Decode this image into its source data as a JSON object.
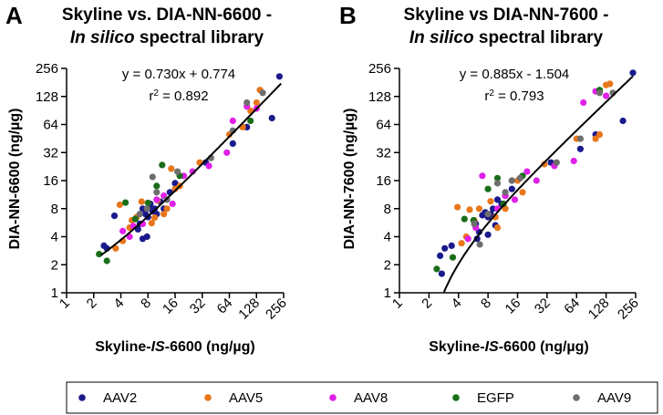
{
  "legend": [
    {
      "label": "AAV2",
      "color": "#1a1a8c"
    },
    {
      "label": "AAV5",
      "color": "#e8761a"
    },
    {
      "label": "AAV8",
      "color": "#e020e8"
    },
    {
      "label": "EGFP",
      "color": "#1a6e1a"
    },
    {
      "label": "AAV9",
      "color": "#6e6e6e"
    }
  ],
  "chart_data": [
    {
      "type": "scatter",
      "panel": "A",
      "title_line1": "Skyline vs. DIA-NN-6600 -",
      "title_line2_italic": "In silico",
      "title_line2_rest": " spectral library",
      "xlabel_pre": "Skyline-",
      "xlabel_it": "IS",
      "xlabel_post": "-6600 (ng/µg)",
      "ylabel": "DIA-NN-6600 (ng/µg)",
      "scale": "log2",
      "xlim": [
        1,
        256
      ],
      "ylim": [
        1,
        256
      ],
      "xticks": [
        1,
        2,
        4,
        8,
        16,
        32,
        64,
        128,
        256
      ],
      "yticks": [
        1,
        2,
        4,
        8,
        16,
        32,
        64,
        128,
        256
      ],
      "tick_labels": [
        "1",
        "2",
        "4",
        "8",
        "16",
        "32",
        "64",
        "128",
        "256"
      ],
      "fit": {
        "slope": 0.73,
        "intercept": 0.774,
        "x_from": 2.4,
        "x_to": 240
      },
      "equation_line1": "y = 0.730x + 0.774",
      "r2_prefix": "r",
      "r2_sup": "2",
      "r2_value": " = 0.892",
      "series": [
        {
          "name": "AAV2",
          "points": [
            [
              2.6,
              3.2
            ],
            [
              2.8,
              3.0
            ],
            [
              3.4,
              6.7
            ],
            [
              6.5,
              5.5
            ],
            [
              7,
              8
            ],
            [
              7.5,
              7
            ],
            [
              8,
              6.5
            ],
            [
              8.3,
              8.5
            ],
            [
              8.5,
              9
            ],
            [
              9,
              7.5
            ],
            [
              9.5,
              8
            ],
            [
              7.8,
              4
            ],
            [
              10,
              7
            ],
            [
              11,
              9.5
            ],
            [
              12,
              8
            ],
            [
              14,
              12
            ],
            [
              16,
              15
            ],
            [
              6.2,
              4.8
            ],
            [
              7,
              3.8
            ],
            [
              35,
              25
            ],
            [
              70,
              40
            ],
            [
              100,
              60
            ],
            [
              190,
              75
            ],
            [
              230,
              210
            ]
          ]
        },
        {
          "name": "AAV5",
          "points": [
            [
              3.5,
              3
            ],
            [
              3.9,
              8.8
            ],
            [
              4.2,
              3.6
            ],
            [
              5,
              5
            ],
            [
              5.3,
              6
            ],
            [
              6,
              6.5
            ],
            [
              6.8,
              9.5
            ],
            [
              8.8,
              5.6
            ],
            [
              9.5,
              6.4
            ],
            [
              10.2,
              9.8
            ],
            [
              12,
              7
            ],
            [
              13,
              8
            ],
            [
              14.5,
              21.5
            ],
            [
              16,
              13
            ],
            [
              18,
              14
            ],
            [
              30,
              25
            ],
            [
              64,
              50
            ],
            [
              90,
              60
            ],
            [
              110,
              90
            ],
            [
              128,
              110
            ],
            [
              140,
              150
            ]
          ]
        },
        {
          "name": "AAV8",
          "points": [
            [
              4.2,
              4.6
            ],
            [
              5,
              4
            ],
            [
              5.5,
              5.2
            ],
            [
              7,
              5.5
            ],
            [
              10,
              10
            ],
            [
              12,
              11
            ],
            [
              15,
              9
            ],
            [
              20,
              18
            ],
            [
              25,
              20
            ],
            [
              38,
              23
            ],
            [
              60,
              32
            ],
            [
              70,
              70
            ],
            [
              100,
              100
            ],
            [
              128,
              95
            ]
          ]
        },
        {
          "name": "EGFP",
          "points": [
            [
              2.3,
              2.6
            ],
            [
              2.8,
              2.2
            ],
            [
              4.5,
              9.3
            ],
            [
              5.8,
              6.2
            ],
            [
              8,
              9.2
            ],
            [
              10,
              14
            ],
            [
              11.5,
              23.5
            ],
            [
              18,
              18
            ],
            [
              110,
              70
            ]
          ]
        },
        {
          "name": "AAV9",
          "points": [
            [
              6.5,
              7
            ],
            [
              7.8,
              8
            ],
            [
              9,
              17.5
            ],
            [
              10,
              12
            ],
            [
              13,
              10
            ],
            [
              17,
              20
            ],
            [
              40,
              28
            ],
            [
              70,
              55
            ],
            [
              100,
              110
            ],
            [
              150,
              140
            ]
          ]
        }
      ]
    },
    {
      "type": "scatter",
      "panel": "B",
      "title_line1": "Skyline vs DIA-NN-7600 -",
      "title_line2_italic": "In silico",
      "title_line2_rest": " spectral library",
      "xlabel_pre": "Skyline-",
      "xlabel_it": "IS",
      "xlabel_post": "-6600 (ng/µg)",
      "ylabel": "DIA-NN-7600 (ng/µg)",
      "scale": "log2",
      "xlim": [
        1,
        256
      ],
      "ylim": [
        1,
        256
      ],
      "xticks": [
        1,
        2,
        4,
        8,
        16,
        32,
        64,
        128,
        256
      ],
      "yticks": [
        1,
        2,
        4,
        8,
        16,
        32,
        64,
        128,
        256
      ],
      "tick_labels": [
        "1",
        "2",
        "4",
        "8",
        "16",
        "32",
        "64",
        "128",
        "256"
      ],
      "fit": {
        "slope": 0.885,
        "intercept": -1.504,
        "x_from": 2.85,
        "x_to": 240
      },
      "equation_line1": "y = 0.885x - 1.504",
      "r2_prefix": "r",
      "r2_sup": "2",
      "r2_value": " = 0.793",
      "series": [
        {
          "name": "AAV2",
          "points": [
            [
              2.6,
              2.5
            ],
            [
              2.7,
              1.6
            ],
            [
              2.9,
              3
            ],
            [
              3.4,
              3.2
            ],
            [
              6,
              5.5
            ],
            [
              6.5,
              4.5
            ],
            [
              7,
              6.8
            ],
            [
              7.5,
              7.3
            ],
            [
              8,
              6.5
            ],
            [
              8.5,
              7
            ],
            [
              9,
              8
            ],
            [
              9.5,
              5.3
            ],
            [
              10,
              10
            ],
            [
              11,
              9
            ],
            [
              12,
              11
            ],
            [
              14,
              13
            ],
            [
              6.2,
              3.8
            ],
            [
              8,
              4.2
            ],
            [
              35,
              25
            ],
            [
              70,
              35
            ],
            [
              100,
              50
            ],
            [
              190,
              70
            ],
            [
              240,
              230
            ]
          ]
        },
        {
          "name": "AAV5",
          "points": [
            [
              3.9,
              8.3
            ],
            [
              4.3,
              3.4
            ],
            [
              4.8,
              4
            ],
            [
              5.2,
              7.8
            ],
            [
              5.8,
              6
            ],
            [
              6.5,
              8
            ],
            [
              8.5,
              9.6
            ],
            [
              9.5,
              6.5
            ],
            [
              10,
              5
            ],
            [
              12,
              8
            ],
            [
              14,
              16
            ],
            [
              16,
              16
            ],
            [
              18,
              12
            ],
            [
              30,
              24
            ],
            [
              64,
              45
            ],
            [
              100,
              45
            ],
            [
              110,
              50
            ],
            [
              128,
              170
            ],
            [
              140,
              175
            ]
          ]
        },
        {
          "name": "AAV8",
          "points": [
            [
              5,
              3.8
            ],
            [
              6,
              5
            ],
            [
              7,
              18
            ],
            [
              10,
              8
            ],
            [
              12,
              11
            ],
            [
              15,
              10
            ],
            [
              20,
              20
            ],
            [
              25,
              16
            ],
            [
              38,
              23
            ],
            [
              60,
              26
            ],
            [
              75,
              110
            ],
            [
              100,
              145
            ],
            [
              128,
              130
            ]
          ]
        },
        {
          "name": "EGFP",
          "points": [
            [
              2.4,
              1.8
            ],
            [
              3.5,
              2.4
            ],
            [
              4.6,
              6.2
            ],
            [
              5.7,
              6
            ],
            [
              8,
              13
            ],
            [
              10,
              17
            ],
            [
              11.5,
              9
            ],
            [
              18,
              18
            ],
            [
              110,
              150
            ]
          ]
        },
        {
          "name": "AAV9",
          "points": [
            [
              5.8,
              5.5
            ],
            [
              6.6,
              3.3
            ],
            [
              8,
              7
            ],
            [
              10,
              15
            ],
            [
              12,
              12
            ],
            [
              14,
              16
            ],
            [
              17,
              17
            ],
            [
              40,
              25
            ],
            [
              70,
              45
            ],
            [
              110,
              140
            ],
            [
              150,
              140
            ]
          ]
        }
      ]
    }
  ]
}
